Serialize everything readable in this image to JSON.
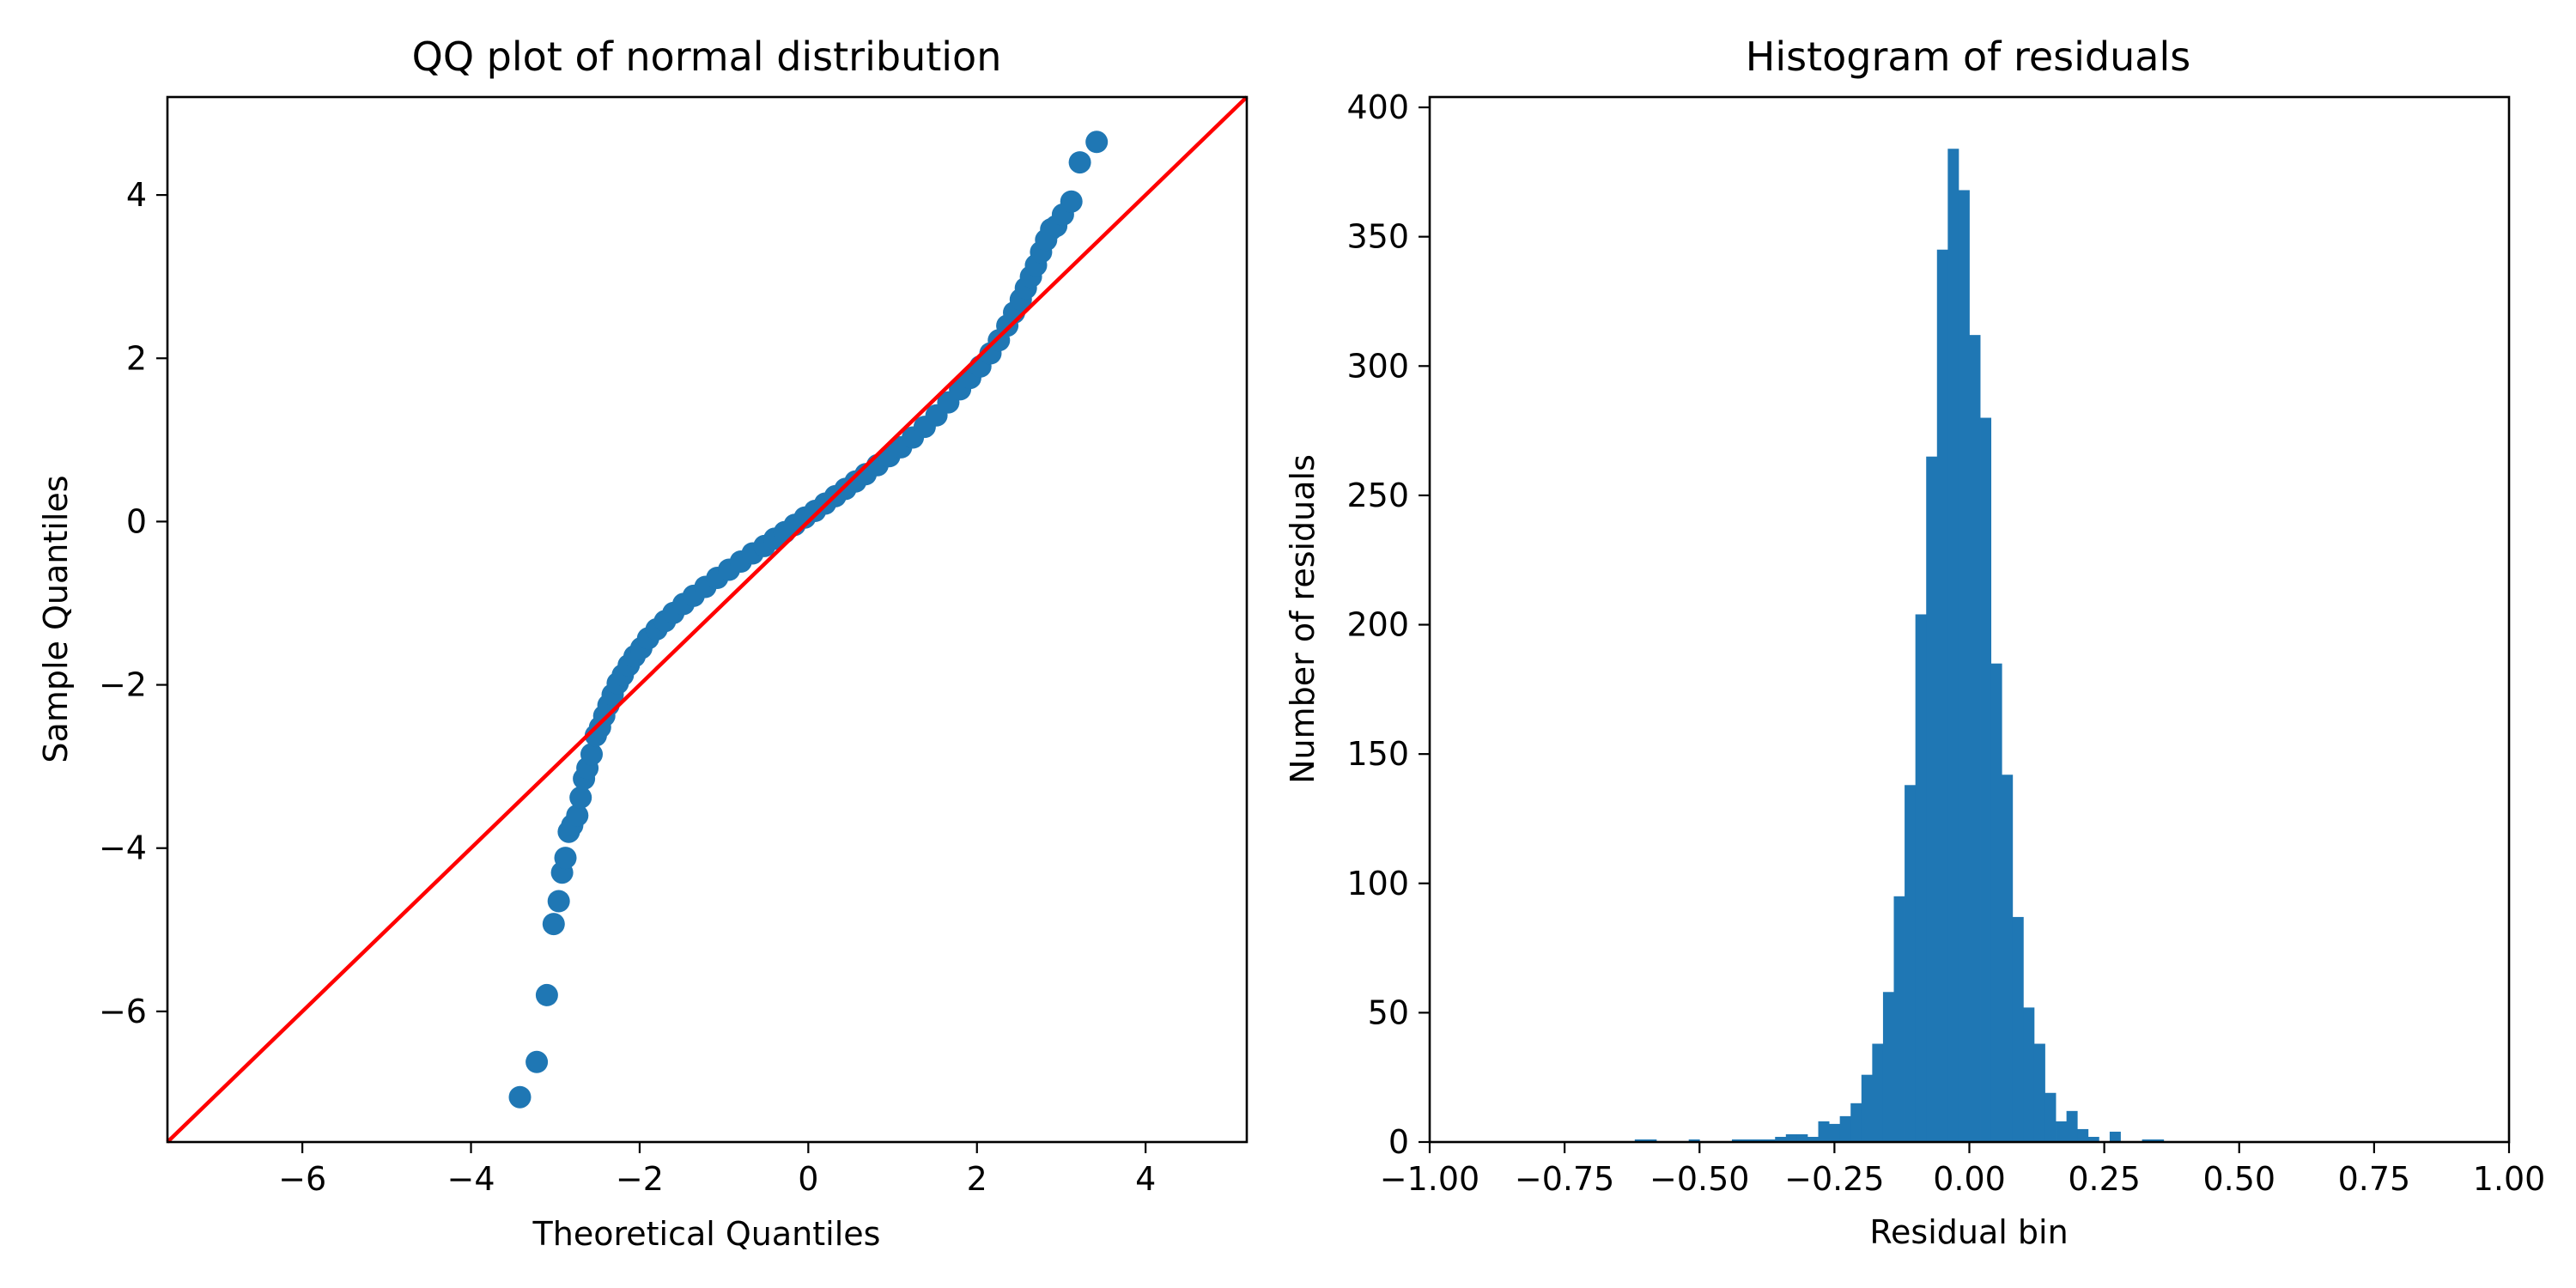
{
  "chart_data": [
    {
      "type": "scatter",
      "title": "QQ plot of normal distribution",
      "xlabel": "Theoretical Quantiles",
      "ylabel": "Sample Quantiles",
      "xlim": [
        -7.6,
        5.2
      ],
      "ylim": [
        -7.6,
        5.2
      ],
      "xticks": [
        -6,
        -4,
        -2,
        0,
        2,
        4
      ],
      "yticks": [
        -6,
        -4,
        -2,
        0,
        2,
        4
      ],
      "xtick_labels": [
        "−6",
        "−4",
        "−2",
        "0",
        "2",
        "4"
      ],
      "ytick_labels": [
        "−6",
        "−4",
        "−2",
        "0",
        "2",
        "4"
      ],
      "grid": false,
      "point_color": "#1f77b4",
      "line_color": "#ff0000",
      "reference_line": {
        "from": [
          -7.6,
          -7.6
        ],
        "to": [
          5.2,
          5.2
        ]
      },
      "points": {
        "x": [
          -3.42,
          -3.22,
          -3.1,
          -3.02,
          -2.96,
          -2.92,
          -2.88,
          -2.84,
          -2.8,
          -2.74,
          -2.7,
          -2.66,
          -2.62,
          -2.57,
          -2.52,
          -2.47,
          -2.42,
          -2.37,
          -2.32,
          -2.26,
          -2.2,
          -2.13,
          -2.06,
          -1.98,
          -1.9,
          -1.8,
          -1.7,
          -1.6,
          -1.48,
          -1.36,
          -1.22,
          -1.08,
          -0.94,
          -0.8,
          -0.66,
          -0.52,
          -0.4,
          -0.28,
          -0.16,
          -0.04,
          0.08,
          0.2,
          0.32,
          0.44,
          0.56,
          0.68,
          0.82,
          0.96,
          1.1,
          1.24,
          1.38,
          1.52,
          1.66,
          1.8,
          1.92,
          2.04,
          2.16,
          2.26,
          2.36,
          2.44,
          2.52,
          2.58,
          2.64,
          2.7,
          2.76,
          2.82,
          2.88,
          2.94,
          3.02,
          3.12,
          3.22,
          3.42
        ],
        "y": [
          -7.05,
          -6.62,
          -5.8,
          -4.93,
          -4.65,
          -4.3,
          -4.12,
          -3.8,
          -3.72,
          -3.6,
          -3.38,
          -3.15,
          -3.02,
          -2.85,
          -2.62,
          -2.52,
          -2.38,
          -2.25,
          -2.12,
          -1.98,
          -1.88,
          -1.76,
          -1.65,
          -1.55,
          -1.43,
          -1.32,
          -1.22,
          -1.12,
          -1.01,
          -0.91,
          -0.8,
          -0.69,
          -0.59,
          -0.49,
          -0.39,
          -0.3,
          -0.21,
          -0.13,
          -0.04,
          0.05,
          0.13,
          0.22,
          0.31,
          0.4,
          0.49,
          0.58,
          0.69,
          0.8,
          0.91,
          1.03,
          1.16,
          1.3,
          1.46,
          1.62,
          1.76,
          1.9,
          2.06,
          2.22,
          2.4,
          2.56,
          2.72,
          2.86,
          3.0,
          3.14,
          3.3,
          3.45,
          3.58,
          3.62,
          3.76,
          3.92,
          4.4,
          4.65
        ]
      }
    },
    {
      "type": "bar",
      "title": "Histogram of residuals",
      "xlabel": "Residual bin",
      "ylabel": "Number of residuals",
      "xlim": [
        -1.0,
        1.0
      ],
      "ylim": [
        0,
        404
      ],
      "xticks": [
        -1.0,
        -0.75,
        -0.5,
        -0.25,
        0.0,
        0.25,
        0.5,
        0.75,
        1.0
      ],
      "yticks": [
        0,
        50,
        100,
        150,
        200,
        250,
        300,
        350,
        400
      ],
      "xtick_labels": [
        "−1.00",
        "−0.75",
        "−0.50",
        "−0.25",
        "0.00",
        "0.25",
        "0.50",
        "0.75",
        "1.00"
      ],
      "ytick_labels": [
        "0",
        "50",
        "100",
        "150",
        "200",
        "250",
        "300",
        "350",
        "400"
      ],
      "grid": false,
      "bar_color": "#1f77b4",
      "bin_start": -0.62,
      "bin_width": 0.02,
      "values": [
        1,
        1,
        0,
        0,
        0,
        1,
        0,
        0,
        0,
        1,
        1,
        1,
        1,
        2,
        3,
        3,
        2,
        8,
        7,
        10,
        15,
        26,
        38,
        58,
        95,
        138,
        204,
        265,
        345,
        384,
        368,
        312,
        280,
        185,
        142,
        87,
        52,
        38,
        19,
        8,
        12,
        5,
        2,
        0,
        4,
        0,
        0,
        1,
        1,
        0,
        0,
        0,
        0
      ]
    }
  ]
}
